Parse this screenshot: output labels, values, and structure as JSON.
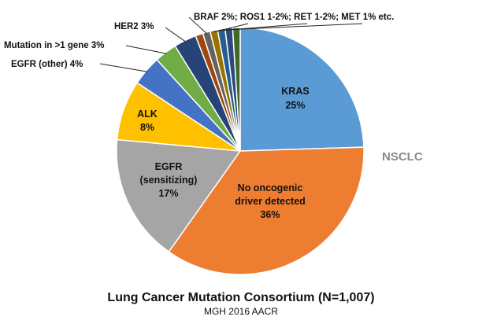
{
  "chart_data": {
    "type": "pie",
    "title": "Lung Cancer Mutation Consortium (N=1,007)",
    "subtitle": "MGH 2016 AACR",
    "side_label": "NSCLC",
    "slices": [
      {
        "name": "KRAS",
        "value": 25,
        "value_label": "25%",
        "color": "#5b9bd5",
        "label_style": "inside"
      },
      {
        "name": "No oncogenic driver detected",
        "value": 36,
        "value_label": "36%",
        "color": "#ed7d31",
        "label_style": "inside"
      },
      {
        "name": "EGFR (sensitizing)",
        "value": 17,
        "value_label": "17%",
        "color": "#a5a5a5",
        "label_style": "inside"
      },
      {
        "name": "ALK",
        "value": 8,
        "value_label": "8%",
        "color": "#ffc000",
        "label_style": "inside"
      },
      {
        "name": "EGFR (other)",
        "value": 4,
        "value_label": "4%",
        "color": "#4472c4",
        "label_style": "outside"
      },
      {
        "name": "Mutation in >1 gene",
        "value": 3,
        "value_label": "3%",
        "color": "#70ad47",
        "label_style": "outside"
      },
      {
        "name": "HER2",
        "value": 3,
        "value_label": "3%",
        "color": "#264478",
        "label_style": "outside"
      },
      {
        "name": "",
        "value": 1,
        "color": "#9e480e",
        "label_style": "none"
      },
      {
        "name": "",
        "value": 1,
        "color": "#636363",
        "label_style": "none"
      },
      {
        "name": "",
        "value": 1,
        "color": "#997300",
        "label_style": "none"
      },
      {
        "name": "",
        "value": 1,
        "color": "#255e91",
        "label_style": "none"
      },
      {
        "name": "",
        "value": 1,
        "color": "#2e4a7d",
        "label_style": "none"
      },
      {
        "name": "",
        "value": 1,
        "color": "#43682b",
        "label_style": "none"
      }
    ],
    "labels": {
      "kras": {
        "name": "KRAS",
        "value": "25%"
      },
      "no_driver": {
        "line1": "No oncogenic",
        "line2": "driver detected",
        "value": "36%"
      },
      "egfr_sensitizing": {
        "line1": "EGFR",
        "line2": "(sensitizing)",
        "value": "17%"
      },
      "alk": {
        "name": "ALK",
        "value": "8%"
      },
      "egfr_other": "EGFR (other) 4%",
      "mutation_multi": "Mutation in >1 gene 3%",
      "her2": "HER2 3%",
      "small_drivers": "BRAF 2%; ROS1 1-2%; RET 1-2%; MET 1% etc."
    }
  }
}
